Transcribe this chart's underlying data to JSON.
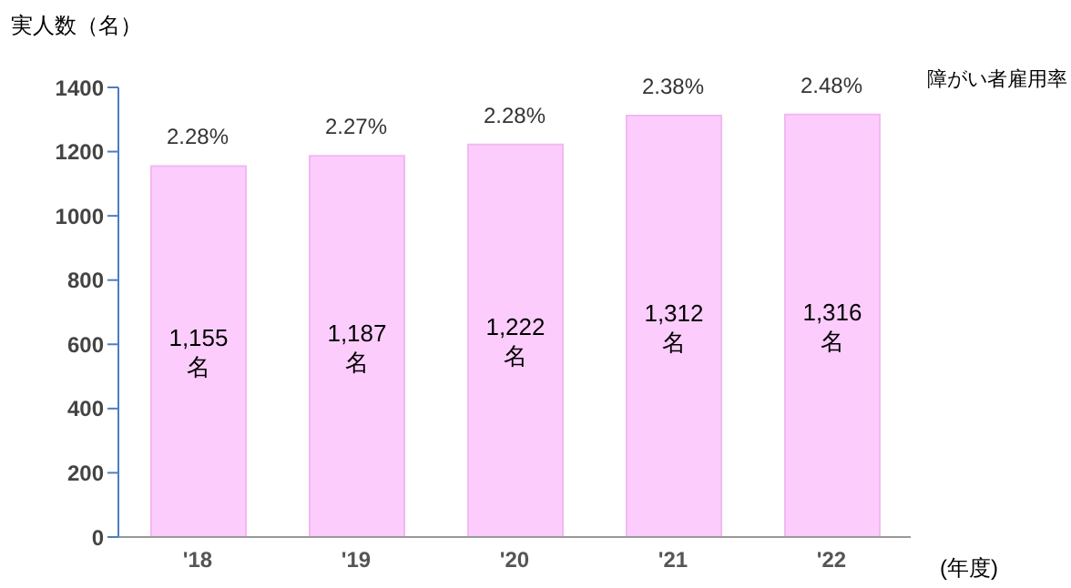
{
  "chart_data": {
    "type": "bar",
    "ylabel": "実人数（名）",
    "xlabel": "(年度)",
    "categories": [
      "'18",
      "'19",
      "'20",
      "'21",
      "'22"
    ],
    "values": [
      1155,
      1187,
      1222,
      1312,
      1316
    ],
    "value_labels": [
      "1,155\n名",
      "1,187\n名",
      "1,222\n名",
      "1,312\n名",
      "1,316\n名"
    ],
    "color": "#fccdfc",
    "ylim": [
      0,
      1400
    ],
    "yticks": [
      0,
      200,
      400,
      600,
      800,
      1000,
      1200,
      1400
    ],
    "grid": false,
    "annotations": [
      "障がい者雇用率",
      {
        "text": "2.28%",
        "x": "'18",
        "y": 1155
      },
      {
        "text": "2.27%",
        "x": "'19",
        "y": 1187
      },
      {
        "text": "2.28%",
        "x": "'20",
        "y": 1222
      },
      {
        "text": "2.38%",
        "x": "'21",
        "y": 1312
      },
      {
        "text": "2.48%",
        "x": "'22",
        "y": 1316
      }
    ]
  }
}
